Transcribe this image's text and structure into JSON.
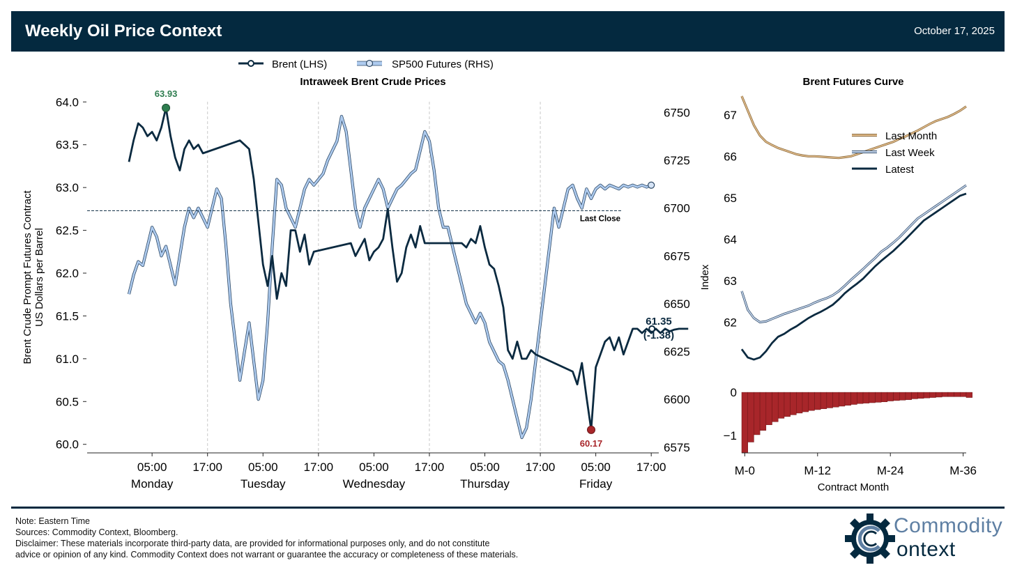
{
  "header": {
    "title": "Weekly Oil Price Context",
    "date": "October 17, 2025"
  },
  "colors": {
    "brent": "#0b2a40",
    "sp500": "#aecbef",
    "sp500_edge": "#2f4a66",
    "last_month": "#c9995f",
    "last_week": "#7a95b4",
    "latest": "#0b2a40",
    "spread": "#a8262a",
    "high": "#2e7d4f",
    "low": "#a8262a",
    "header_bg": "#04293f"
  },
  "chart_data": [
    {
      "type": "line",
      "title": "Intraweek Brent Crude Prices",
      "ylabel_line1": "Brent Crude Prompt Futures Contract",
      "ylabel_line2": "US Dollars per Barrel",
      "ylim": [
        59.9,
        64.1
      ],
      "y2lim": [
        6572,
        6760
      ],
      "yticks": [
        "60.0",
        "60.5",
        "61.0",
        "61.5",
        "62.0",
        "62.5",
        "63.0",
        "63.5",
        "64.0"
      ],
      "y2ticks": [
        "6575",
        "6600",
        "6625",
        "6650",
        "6675",
        "6700",
        "6725",
        "6750"
      ],
      "xticks": [
        {
          "time": "05:00",
          "day": "Monday"
        },
        {
          "time": "17:00",
          "day": ""
        },
        {
          "time": "05:00",
          "day": "Tuesday"
        },
        {
          "time": "17:00",
          "day": ""
        },
        {
          "time": "05:00",
          "day": "Wednesday"
        },
        {
          "time": "17:00",
          "day": ""
        },
        {
          "time": "05:00",
          "day": "Thursday"
        },
        {
          "time": "17:00",
          "day": ""
        },
        {
          "time": "05:00",
          "day": "Friday"
        },
        {
          "time": "17:00",
          "day": ""
        }
      ],
      "x_hours_note": "x values are hours from Monday 00:00 Eastern Time",
      "legend": [
        "Brent (LHS)",
        "SP500 Futures (RHS)"
      ],
      "series": [
        {
          "name": "Brent (LHS)",
          "axis": "left",
          "x": [
            0,
            1,
            2,
            3,
            4,
            5,
            6,
            7,
            8,
            9,
            10,
            11,
            12,
            13,
            14,
            15,
            16,
            24,
            25,
            26,
            27,
            28,
            29,
            30,
            31,
            32,
            33,
            34,
            35,
            36,
            37,
            38,
            39,
            40,
            48,
            49,
            50,
            51,
            52,
            53,
            54,
            55,
            56,
            57,
            58,
            59,
            60,
            61,
            62,
            63,
            64,
            72,
            73,
            74,
            75,
            76,
            77,
            78,
            79,
            80,
            81,
            82,
            83,
            84,
            85,
            86,
            87,
            88,
            96,
            97,
            98,
            99,
            100,
            101,
            102,
            103,
            104,
            105,
            106,
            107,
            108,
            109,
            110,
            111,
            112,
            113,
            114,
            115,
            116,
            117,
            118,
            119,
            120,
            121
          ],
          "y": [
            63.3,
            63.55,
            63.75,
            63.7,
            63.6,
            63.65,
            63.55,
            63.7,
            63.93,
            63.6,
            63.35,
            63.2,
            63.45,
            63.55,
            63.45,
            63.5,
            63.4,
            63.55,
            63.5,
            63.45,
            63.1,
            62.6,
            62.1,
            61.85,
            62.2,
            61.7,
            62.0,
            61.85,
            62.5,
            62.5,
            62.25,
            62.45,
            62.1,
            62.25,
            62.35,
            62.2,
            62.3,
            62.4,
            62.15,
            62.25,
            62.3,
            62.4,
            62.75,
            62.3,
            61.9,
            62.0,
            62.3,
            62.45,
            62.3,
            62.55,
            62.35,
            62.35,
            62.3,
            62.4,
            62.35,
            62.55,
            62.3,
            62.1,
            62.05,
            61.85,
            61.6,
            61.1,
            61.0,
            61.2,
            61.0,
            61.0,
            61.1,
            61.05,
            60.85,
            60.7,
            60.95,
            60.55,
            60.17,
            60.9,
            61.05,
            61.2,
            61.25,
            61.1,
            61.25,
            61.05,
            61.2,
            61.35,
            61.35,
            61.3,
            61.35,
            61.3,
            61.35,
            61.3,
            61.35,
            61.32,
            61.34,
            61.35,
            61.35,
            61.35
          ]
        },
        {
          "name": "SP500 Futures (RHS)",
          "axis": "right",
          "x": [
            0,
            1,
            2,
            3,
            4,
            5,
            6,
            7,
            8,
            9,
            10,
            11,
            12,
            13,
            14,
            15,
            16,
            17,
            18,
            19,
            20,
            21,
            22,
            23,
            24,
            25,
            26,
            27,
            28,
            29,
            30,
            31,
            32,
            33,
            34,
            35,
            36,
            37,
            38,
            39,
            40,
            41,
            42,
            43,
            44,
            45,
            46,
            47,
            48,
            49,
            50,
            51,
            52,
            53,
            54,
            55,
            56,
            57,
            58,
            59,
            60,
            61,
            62,
            63,
            64,
            65,
            66,
            67,
            68,
            69,
            70,
            71,
            72,
            73,
            74,
            75,
            76,
            77,
            78,
            79,
            80,
            81,
            82,
            83,
            84,
            85,
            86,
            87,
            88,
            89,
            90,
            91,
            92,
            93,
            94,
            95,
            96,
            97,
            98,
            99,
            100,
            101,
            102,
            103,
            104,
            105,
            106,
            107,
            108,
            109,
            110,
            111,
            112,
            113
          ],
          "y": [
            6655,
            6665,
            6672,
            6670,
            6680,
            6690,
            6685,
            6675,
            6680,
            6670,
            6660,
            6675,
            6690,
            6700,
            6695,
            6700,
            6695,
            6690,
            6700,
            6710,
            6705,
            6680,
            6650,
            6630,
            6610,
            6625,
            6640,
            6620,
            6600,
            6610,
            6640,
            6680,
            6715,
            6712,
            6700,
            6695,
            6690,
            6700,
            6710,
            6715,
            6712,
            6715,
            6718,
            6725,
            6730,
            6735,
            6748,
            6740,
            6720,
            6700,
            6690,
            6700,
            6705,
            6710,
            6715,
            6710,
            6700,
            6705,
            6710,
            6712,
            6715,
            6718,
            6720,
            6730,
            6740,
            6735,
            6720,
            6700,
            6690,
            6690,
            6680,
            6670,
            6660,
            6650,
            6645,
            6640,
            6645,
            6640,
            6630,
            6625,
            6620,
            6618,
            6610,
            6600,
            6590,
            6580,
            6585,
            6600,
            6620,
            6640,
            6660,
            6680,
            6700,
            6690,
            6700,
            6710,
            6712,
            6705,
            6700,
            6710,
            6705,
            6710,
            6712,
            6710,
            6712,
            6711,
            6710,
            6712,
            6711,
            6712,
            6711,
            6712,
            6711,
            6712
          ]
        }
      ],
      "reference_line": {
        "value": 62.73,
        "label": "Last Close"
      },
      "annotations": {
        "high": {
          "x": 8,
          "y": 63.93,
          "label": "63.93"
        },
        "low": {
          "x": 100,
          "y": 60.17,
          "label": "60.17"
        },
        "last": {
          "x": 113,
          "y": 61.35,
          "label_value": "61.35",
          "label_change": "(-1.38)"
        }
      }
    },
    {
      "type": "line",
      "title": "Brent Futures Curve",
      "ylabel": "Index",
      "xlabel": "Contract Month",
      "xticks": [
        "M-0",
        "M-12",
        "M-24",
        "M-36"
      ],
      "yticks": [
        "62",
        "63",
        "64",
        "65",
        "66",
        "67"
      ],
      "ylim": [
        61.0,
        67.5
      ],
      "xlim": [
        0,
        37
      ],
      "legend": [
        "Last Month",
        "Last Week",
        "Latest"
      ],
      "series": [
        {
          "name": "Last Month",
          "x": [
            0,
            1,
            2,
            3,
            4,
            5,
            6,
            7,
            8,
            9,
            10,
            11,
            12,
            13,
            14,
            15,
            16,
            17,
            18,
            19,
            20,
            21,
            22,
            23,
            24,
            25,
            26,
            27,
            28,
            29,
            30,
            31,
            32,
            33,
            34,
            35,
            36,
            37
          ],
          "y": [
            67.45,
            67.1,
            66.75,
            66.5,
            66.35,
            66.27,
            66.2,
            66.15,
            66.1,
            66.05,
            66.02,
            66.0,
            66.0,
            65.99,
            65.98,
            65.97,
            65.96,
            65.98,
            66.0,
            66.05,
            66.1,
            66.15,
            66.2,
            66.25,
            66.3,
            66.35,
            66.42,
            66.48,
            66.55,
            66.62,
            66.7,
            66.78,
            66.85,
            66.9,
            66.95,
            67.02,
            67.1,
            67.2
          ]
        },
        {
          "name": "Last Week",
          "x": [
            0,
            1,
            2,
            3,
            4,
            5,
            6,
            7,
            8,
            9,
            10,
            11,
            12,
            13,
            14,
            15,
            16,
            17,
            18,
            19,
            20,
            21,
            22,
            23,
            24,
            25,
            26,
            27,
            28,
            29,
            30,
            31,
            32,
            33,
            34,
            35,
            36,
            37
          ],
          "y": [
            62.75,
            62.3,
            62.1,
            62.0,
            62.02,
            62.08,
            62.14,
            62.2,
            62.25,
            62.3,
            62.35,
            62.4,
            62.47,
            62.53,
            62.58,
            62.65,
            62.75,
            62.88,
            63.02,
            63.15,
            63.28,
            63.42,
            63.55,
            63.7,
            63.8,
            63.92,
            64.05,
            64.2,
            64.35,
            64.5,
            64.6,
            64.7,
            64.8,
            64.9,
            65.0,
            65.1,
            65.2,
            65.3
          ]
        },
        {
          "name": "Latest",
          "x": [
            0,
            1,
            2,
            3,
            4,
            5,
            6,
            7,
            8,
            9,
            10,
            11,
            12,
            13,
            14,
            15,
            16,
            17,
            18,
            19,
            20,
            21,
            22,
            23,
            24,
            25,
            26,
            27,
            28,
            29,
            30,
            31,
            32,
            33,
            34,
            35,
            36,
            37
          ],
          "y": [
            61.35,
            61.15,
            61.1,
            61.15,
            61.3,
            61.5,
            61.65,
            61.72,
            61.82,
            61.9,
            62.0,
            62.1,
            62.18,
            62.25,
            62.33,
            62.42,
            62.55,
            62.7,
            62.82,
            62.93,
            63.05,
            63.2,
            63.35,
            63.48,
            63.6,
            63.72,
            63.86,
            64.0,
            64.15,
            64.3,
            64.45,
            64.55,
            64.65,
            64.75,
            64.85,
            64.95,
            65.05,
            65.1
          ]
        }
      ]
    },
    {
      "type": "bar",
      "title": "",
      "yticks": [
        "0",
        "−1"
      ],
      "ylim": [
        -1.4,
        0.05
      ],
      "xlim": [
        0,
        37
      ],
      "categories_note": "contract months M-0 .. M-36",
      "x": [
        0,
        1,
        2,
        3,
        4,
        5,
        6,
        7,
        8,
        9,
        10,
        11,
        12,
        13,
        14,
        15,
        16,
        17,
        18,
        19,
        20,
        21,
        22,
        23,
        24,
        25,
        26,
        27,
        28,
        29,
        30,
        31,
        32,
        33,
        34,
        35,
        36,
        37
      ],
      "values": [
        -1.4,
        -1.15,
        -0.98,
        -0.88,
        -0.75,
        -0.68,
        -0.6,
        -0.56,
        -0.52,
        -0.48,
        -0.45,
        -0.42,
        -0.4,
        -0.38,
        -0.36,
        -0.34,
        -0.32,
        -0.3,
        -0.28,
        -0.26,
        -0.25,
        -0.24,
        -0.23,
        -0.22,
        -0.2,
        -0.19,
        -0.18,
        -0.17,
        -0.15,
        -0.14,
        -0.13,
        -0.12,
        -0.11,
        -0.1,
        -0.1,
        -0.1,
        -0.1,
        -0.12
      ]
    }
  ],
  "footer": {
    "note": "Note: Eastern Time",
    "sources": "Sources: Commodity Context, Bloomberg.",
    "disclaimer_1": "Disclaimer: These materials incorporate third-party data, are provided for informational purposes only, and do not constitute",
    "disclaimer_2": "advice or opinion of any kind. Commodity Context does not warrant or guarantee the accuracy or completeness of these materials."
  },
  "logo": {
    "line1": "Commodity",
    "line2": "ontext"
  }
}
